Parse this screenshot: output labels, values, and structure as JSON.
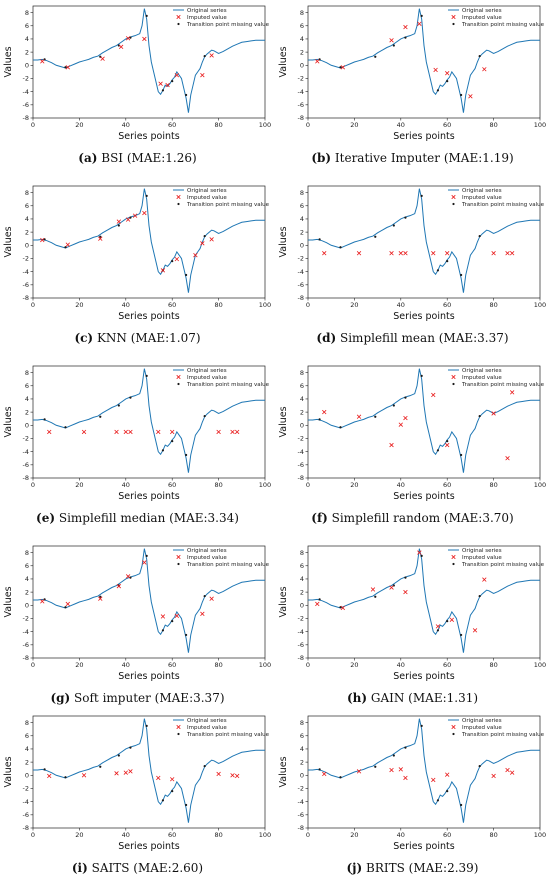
{
  "chart_data": [
    {
      "type": "line",
      "caption": {
        "letter": "(a)",
        "text": "BSI (MAE:1.26)"
      },
      "xlabel": "Series points",
      "ylabel": "Values",
      "xlim": [
        0,
        100
      ],
      "ylim": [
        -8,
        9
      ],
      "xticks": [
        0,
        20,
        40,
        60,
        80,
        100
      ],
      "yticks": [
        -8,
        -6,
        -4,
        -2,
        0,
        2,
        4,
        6,
        8
      ],
      "legend": {
        "position": "top-right",
        "entries": [
          "Original series",
          "Imputed value",
          "Transition point missing value"
        ]
      },
      "series": [
        {
          "name": "Original series",
          "x": [
            0,
            2,
            4,
            6,
            8,
            10,
            12,
            14,
            16,
            18,
            20,
            22,
            24,
            26,
            28,
            30,
            32,
            34,
            36,
            38,
            40,
            42,
            44,
            46,
            47,
            48,
            49,
            50,
            51,
            52,
            53,
            54,
            55,
            56,
            57,
            58,
            59,
            60,
            61,
            62,
            63,
            64,
            65,
            66,
            67,
            68,
            69,
            70,
            71,
            72,
            73,
            74,
            75,
            76,
            77,
            78,
            80,
            82,
            84,
            86,
            88,
            90,
            92,
            94,
            96,
            98,
            100
          ],
          "y": [
            0.8,
            0.8,
            0.9,
            0.7,
            0.4,
            0.0,
            -0.2,
            -0.4,
            -0.1,
            0.2,
            0.5,
            0.7,
            0.9,
            1.2,
            1.4,
            1.9,
            2.3,
            2.7,
            3.0,
            3.5,
            4.0,
            4.3,
            4.5,
            4.8,
            6.0,
            8.6,
            7.0,
            3.0,
            0.5,
            -1.0,
            -2.5,
            -4.0,
            -4.4,
            -3.8,
            -3.0,
            -3.2,
            -2.8,
            -2.2,
            -1.8,
            -1.0,
            -1.5,
            -2.0,
            -3.5,
            -5.0,
            -7.2,
            -4.5,
            -3.0,
            -1.5,
            -1.0,
            -0.5,
            0.5,
            1.3,
            1.7,
            2.0,
            2.3,
            2.2,
            1.8,
            2.1,
            2.5,
            2.9,
            3.2,
            3.5,
            3.6,
            3.7,
            3.8,
            3.8,
            3.8
          ]
        },
        {
          "name": "Imputed value",
          "x": [
            4,
            15,
            30,
            38,
            41,
            48,
            55,
            58,
            62,
            73,
            77
          ],
          "y": [
            0.6,
            -0.3,
            1.0,
            2.8,
            4.1,
            4.0,
            -2.8,
            -3.0,
            -1.5,
            -1.5,
            1.5
          ]
        },
        {
          "name": "Transition point missing value",
          "x": [
            5,
            14,
            29,
            37,
            42,
            49,
            56,
            60,
            66,
            74
          ],
          "y": [
            0.9,
            -0.3,
            1.3,
            3.0,
            4.2,
            7.5,
            -3.8,
            -2.4,
            -4.5,
            1.4
          ]
        }
      ]
    },
    {
      "type": "line",
      "caption": {
        "letter": "(b)",
        "text": "Iterative Imputer (MAE:1.19)"
      },
      "xlabel": "Series points",
      "ylabel": "Values",
      "xlim": [
        0,
        100
      ],
      "ylim": [
        -8,
        9
      ],
      "xticks": [
        0,
        20,
        40,
        60,
        80,
        100
      ],
      "yticks": [
        -8,
        -6,
        -4,
        -2,
        0,
        2,
        4,
        6,
        8
      ],
      "legend": {
        "position": "top-right",
        "entries": [
          "Original series",
          "Imputed value",
          "Transition point missing value"
        ]
      },
      "series": [
        {
          "name": "Imputed value",
          "x": [
            4,
            15,
            36,
            42,
            48,
            55,
            60,
            70,
            76
          ],
          "y": [
            0.6,
            -0.3,
            3.8,
            5.8,
            6.3,
            -0.7,
            -1.2,
            -4.7,
            -0.6
          ]
        },
        {
          "name": "Transition point missing value",
          "x": [
            5,
            14,
            29,
            37,
            42,
            49,
            56,
            60,
            66,
            74
          ],
          "y": [
            0.9,
            -0.3,
            1.3,
            3.0,
            4.2,
            7.5,
            -3.8,
            -2.4,
            -4.5,
            1.4
          ]
        }
      ]
    },
    {
      "type": "line",
      "caption": {
        "letter": "(c)",
        "text": "KNN (MAE:1.07)"
      },
      "xlabel": "Series points",
      "ylabel": "Values",
      "xlim": [
        0,
        100
      ],
      "ylim": [
        -8,
        9
      ],
      "xticks": [
        0,
        20,
        40,
        60,
        80,
        100
      ],
      "yticks": [
        -8,
        -6,
        -4,
        -2,
        0,
        2,
        4,
        6,
        8
      ],
      "legend": {
        "position": "top-right",
        "entries": [
          "Original series",
          "Imputed value",
          "Transition point missing value"
        ]
      },
      "series": [
        {
          "name": "Imputed value",
          "x": [
            4,
            15,
            29,
            37,
            41,
            44,
            48,
            56,
            62,
            70,
            73,
            77
          ],
          "y": [
            0.8,
            0.1,
            1.0,
            3.6,
            3.9,
            4.5,
            4.9,
            -3.8,
            -2.1,
            -1.5,
            0.3,
            0.9
          ]
        },
        {
          "name": "Transition point missing value",
          "x": [
            5,
            14,
            29,
            37,
            42,
            49,
            56,
            60,
            66,
            74
          ],
          "y": [
            0.9,
            -0.3,
            1.3,
            3.0,
            4.2,
            7.5,
            -3.8,
            -2.4,
            -4.5,
            1.4
          ]
        }
      ]
    },
    {
      "type": "line",
      "caption": {
        "letter": "(d)",
        "text": "Simplefill mean (MAE:3.37)"
      },
      "xlabel": "Series points",
      "ylabel": "Values",
      "xlim": [
        0,
        100
      ],
      "ylim": [
        -8,
        9
      ],
      "xticks": [
        0,
        20,
        40,
        60,
        80,
        100
      ],
      "yticks": [
        -8,
        -6,
        -4,
        -2,
        0,
        2,
        4,
        6,
        8
      ],
      "legend": {
        "position": "top-right",
        "entries": [
          "Original series",
          "Imputed value",
          "Transition point missing value"
        ]
      },
      "series": [
        {
          "name": "Imputed value",
          "x": [
            7,
            22,
            36,
            40,
            42,
            54,
            60,
            80,
            86,
            88
          ],
          "y": [
            -1.2,
            -1.2,
            -1.2,
            -1.2,
            -1.2,
            -1.2,
            -1.2,
            -1.2,
            -1.2,
            -1.2
          ]
        },
        {
          "name": "Transition point missing value",
          "x": [
            5,
            14,
            29,
            37,
            42,
            49,
            56,
            60,
            66,
            74
          ],
          "y": [
            0.9,
            -0.3,
            1.3,
            3.0,
            4.2,
            7.5,
            -3.8,
            -2.4,
            -4.5,
            1.4
          ]
        }
      ]
    },
    {
      "type": "line",
      "caption": {
        "letter": "(e)",
        "text": "Simplefill median (MAE:3.34)"
      },
      "xlabel": "Series points",
      "ylabel": "Values",
      "xlim": [
        0,
        100
      ],
      "ylim": [
        -8,
        9
      ],
      "xticks": [
        0,
        20,
        40,
        60,
        80,
        100
      ],
      "yticks": [
        -8,
        -6,
        -4,
        -2,
        0,
        2,
        4,
        6,
        8
      ],
      "legend": {
        "position": "top-right",
        "entries": [
          "Original series",
          "Imputed value",
          "Transition point missing value"
        ]
      },
      "series": [
        {
          "name": "Imputed value",
          "x": [
            7,
            22,
            36,
            40,
            42,
            54,
            60,
            80,
            86,
            88
          ],
          "y": [
            -1.0,
            -1.0,
            -1.0,
            -1.0,
            -1.0,
            -1.0,
            -1.0,
            -1.0,
            -1.0,
            -1.0
          ]
        },
        {
          "name": "Transition point missing value",
          "x": [
            5,
            14,
            29,
            37,
            42,
            49,
            56,
            60,
            66,
            74
          ],
          "y": [
            0.9,
            -0.3,
            1.3,
            3.0,
            4.2,
            7.5,
            -3.8,
            -2.4,
            -4.5,
            1.4
          ]
        }
      ]
    },
    {
      "type": "line",
      "caption": {
        "letter": "(f)",
        "text": "Simplefill random (MAE:3.70)"
      },
      "xlabel": "Series points",
      "ylabel": "Values",
      "xlim": [
        0,
        100
      ],
      "ylim": [
        -8,
        9
      ],
      "xticks": [
        0,
        20,
        40,
        60,
        80,
        100
      ],
      "yticks": [
        -8,
        -6,
        -4,
        -2,
        0,
        2,
        4,
        6,
        8
      ],
      "legend": {
        "position": "top-right",
        "entries": [
          "Original series",
          "Imputed value",
          "Transition point missing value"
        ]
      },
      "series": [
        {
          "name": "Imputed value",
          "x": [
            7,
            22,
            36,
            40,
            42,
            54,
            60,
            80,
            86,
            88
          ],
          "y": [
            2.0,
            1.3,
            -3.0,
            0.1,
            1.1,
            4.6,
            -3.0,
            1.8,
            -5.0,
            5.0
          ]
        },
        {
          "name": "Transition point missing value",
          "x": [
            5,
            14,
            29,
            37,
            42,
            49,
            56,
            60,
            66,
            74
          ],
          "y": [
            0.9,
            -0.3,
            1.3,
            3.0,
            4.2,
            7.5,
            -3.8,
            -2.4,
            -4.5,
            1.4
          ]
        }
      ]
    },
    {
      "type": "line",
      "caption": {
        "letter": "(g)",
        "text": "Soft imputer (MAE:3.37)"
      },
      "xlabel": "Series points",
      "ylabel": "Values",
      "xlim": [
        0,
        100
      ],
      "ylim": [
        -8,
        9
      ],
      "xticks": [
        0,
        20,
        40,
        60,
        80,
        100
      ],
      "yticks": [
        -8,
        -6,
        -4,
        -2,
        0,
        2,
        4,
        6,
        8
      ],
      "legend": {
        "position": "top-right",
        "entries": [
          "Original series",
          "Imputed value",
          "Transition point missing value"
        ]
      },
      "series": [
        {
          "name": "Imputed value",
          "x": [
            4,
            15,
            29,
            37,
            41,
            48,
            56,
            62,
            73,
            77
          ],
          "y": [
            0.6,
            0.2,
            1.0,
            2.9,
            4.4,
            6.5,
            -1.7,
            -1.6,
            -1.3,
            1.0
          ]
        },
        {
          "name": "Transition point missing value",
          "x": [
            5,
            14,
            29,
            37,
            42,
            49,
            56,
            60,
            66,
            74
          ],
          "y": [
            0.9,
            -0.3,
            1.3,
            3.0,
            4.2,
            7.5,
            -3.8,
            -2.4,
            -4.5,
            1.4
          ]
        }
      ]
    },
    {
      "type": "line",
      "caption": {
        "letter": "(h)",
        "text": "GAIN (MAE:1.31)"
      },
      "xlabel": "Series points",
      "ylabel": "Values",
      "xlim": [
        0,
        100
      ],
      "ylim": [
        -8,
        9
      ],
      "xticks": [
        0,
        20,
        40,
        60,
        80,
        100
      ],
      "yticks": [
        -8,
        -6,
        -4,
        -2,
        0,
        2,
        4,
        6,
        8
      ],
      "legend": {
        "position": "top-right",
        "entries": [
          "Original series",
          "Imputed value",
          "Transition point missing value"
        ]
      },
      "series": [
        {
          "name": "Imputed value",
          "x": [
            4,
            15,
            28,
            36,
            42,
            48,
            56,
            62,
            72,
            76
          ],
          "y": [
            0.2,
            -0.4,
            2.4,
            2.7,
            2.0,
            8.0,
            -3.2,
            -2.2,
            -3.8,
            3.9
          ]
        },
        {
          "name": "Transition point missing value",
          "x": [
            5,
            14,
            29,
            37,
            42,
            49,
            56,
            60,
            66,
            74
          ],
          "y": [
            0.9,
            -0.3,
            1.3,
            3.0,
            4.2,
            7.5,
            -3.8,
            -2.4,
            -4.5,
            1.4
          ]
        }
      ]
    },
    {
      "type": "line",
      "caption": {
        "letter": "(i)",
        "text": "SAITS (MAE:2.60)"
      },
      "xlabel": "Series points",
      "ylabel": "Values",
      "xlim": [
        0,
        100
      ],
      "ylim": [
        -8,
        9
      ],
      "xticks": [
        0,
        20,
        40,
        60,
        80,
        100
      ],
      "yticks": [
        -8,
        -6,
        -4,
        -2,
        0,
        2,
        4,
        6,
        8
      ],
      "legend": {
        "position": "top-right",
        "entries": [
          "Original series",
          "Imputed value",
          "Transition point missing value"
        ]
      },
      "series": [
        {
          "name": "Imputed value",
          "x": [
            7,
            22,
            36,
            40,
            42,
            54,
            60,
            80,
            86,
            88
          ],
          "y": [
            -0.1,
            0.0,
            0.3,
            0.4,
            0.6,
            -0.4,
            -0.6,
            0.2,
            0.0,
            -0.1
          ]
        },
        {
          "name": "Transition point missing value",
          "x": [
            5,
            14,
            29,
            37,
            42,
            49,
            56,
            60,
            66,
            74
          ],
          "y": [
            0.9,
            -0.3,
            1.3,
            3.0,
            4.2,
            7.5,
            -3.8,
            -2.4,
            -4.5,
            1.4
          ]
        }
      ]
    },
    {
      "type": "line",
      "caption": {
        "letter": "(j)",
        "text": "BRITS (MAE:2.39)"
      },
      "xlabel": "Series points",
      "ylabel": "Values",
      "xlim": [
        0,
        100
      ],
      "ylim": [
        -8,
        9
      ],
      "xticks": [
        0,
        20,
        40,
        60,
        80,
        100
      ],
      "yticks": [
        -8,
        -6,
        -4,
        -2,
        0,
        2,
        4,
        6,
        8
      ],
      "legend": {
        "position": "top-right",
        "entries": [
          "Original series",
          "Imputed value",
          "Transition point missing value"
        ]
      },
      "series": [
        {
          "name": "Imputed value",
          "x": [
            7,
            22,
            36,
            40,
            42,
            54,
            60,
            80,
            86,
            88
          ],
          "y": [
            0.2,
            0.6,
            0.8,
            0.9,
            -0.4,
            -0.7,
            0.1,
            -0.1,
            0.8,
            0.4
          ]
        },
        {
          "name": "Transition point missing value",
          "x": [
            5,
            14,
            29,
            37,
            42,
            49,
            56,
            60,
            66,
            74
          ],
          "y": [
            0.9,
            -0.3,
            1.3,
            3.0,
            4.2,
            7.5,
            -3.8,
            -2.4,
            -4.5,
            1.4
          ]
        }
      ]
    }
  ],
  "colors": {
    "line": "#1f77b4",
    "imputed": "#e8191a",
    "transition": "#1a1a1a",
    "axis": "#222222"
  }
}
